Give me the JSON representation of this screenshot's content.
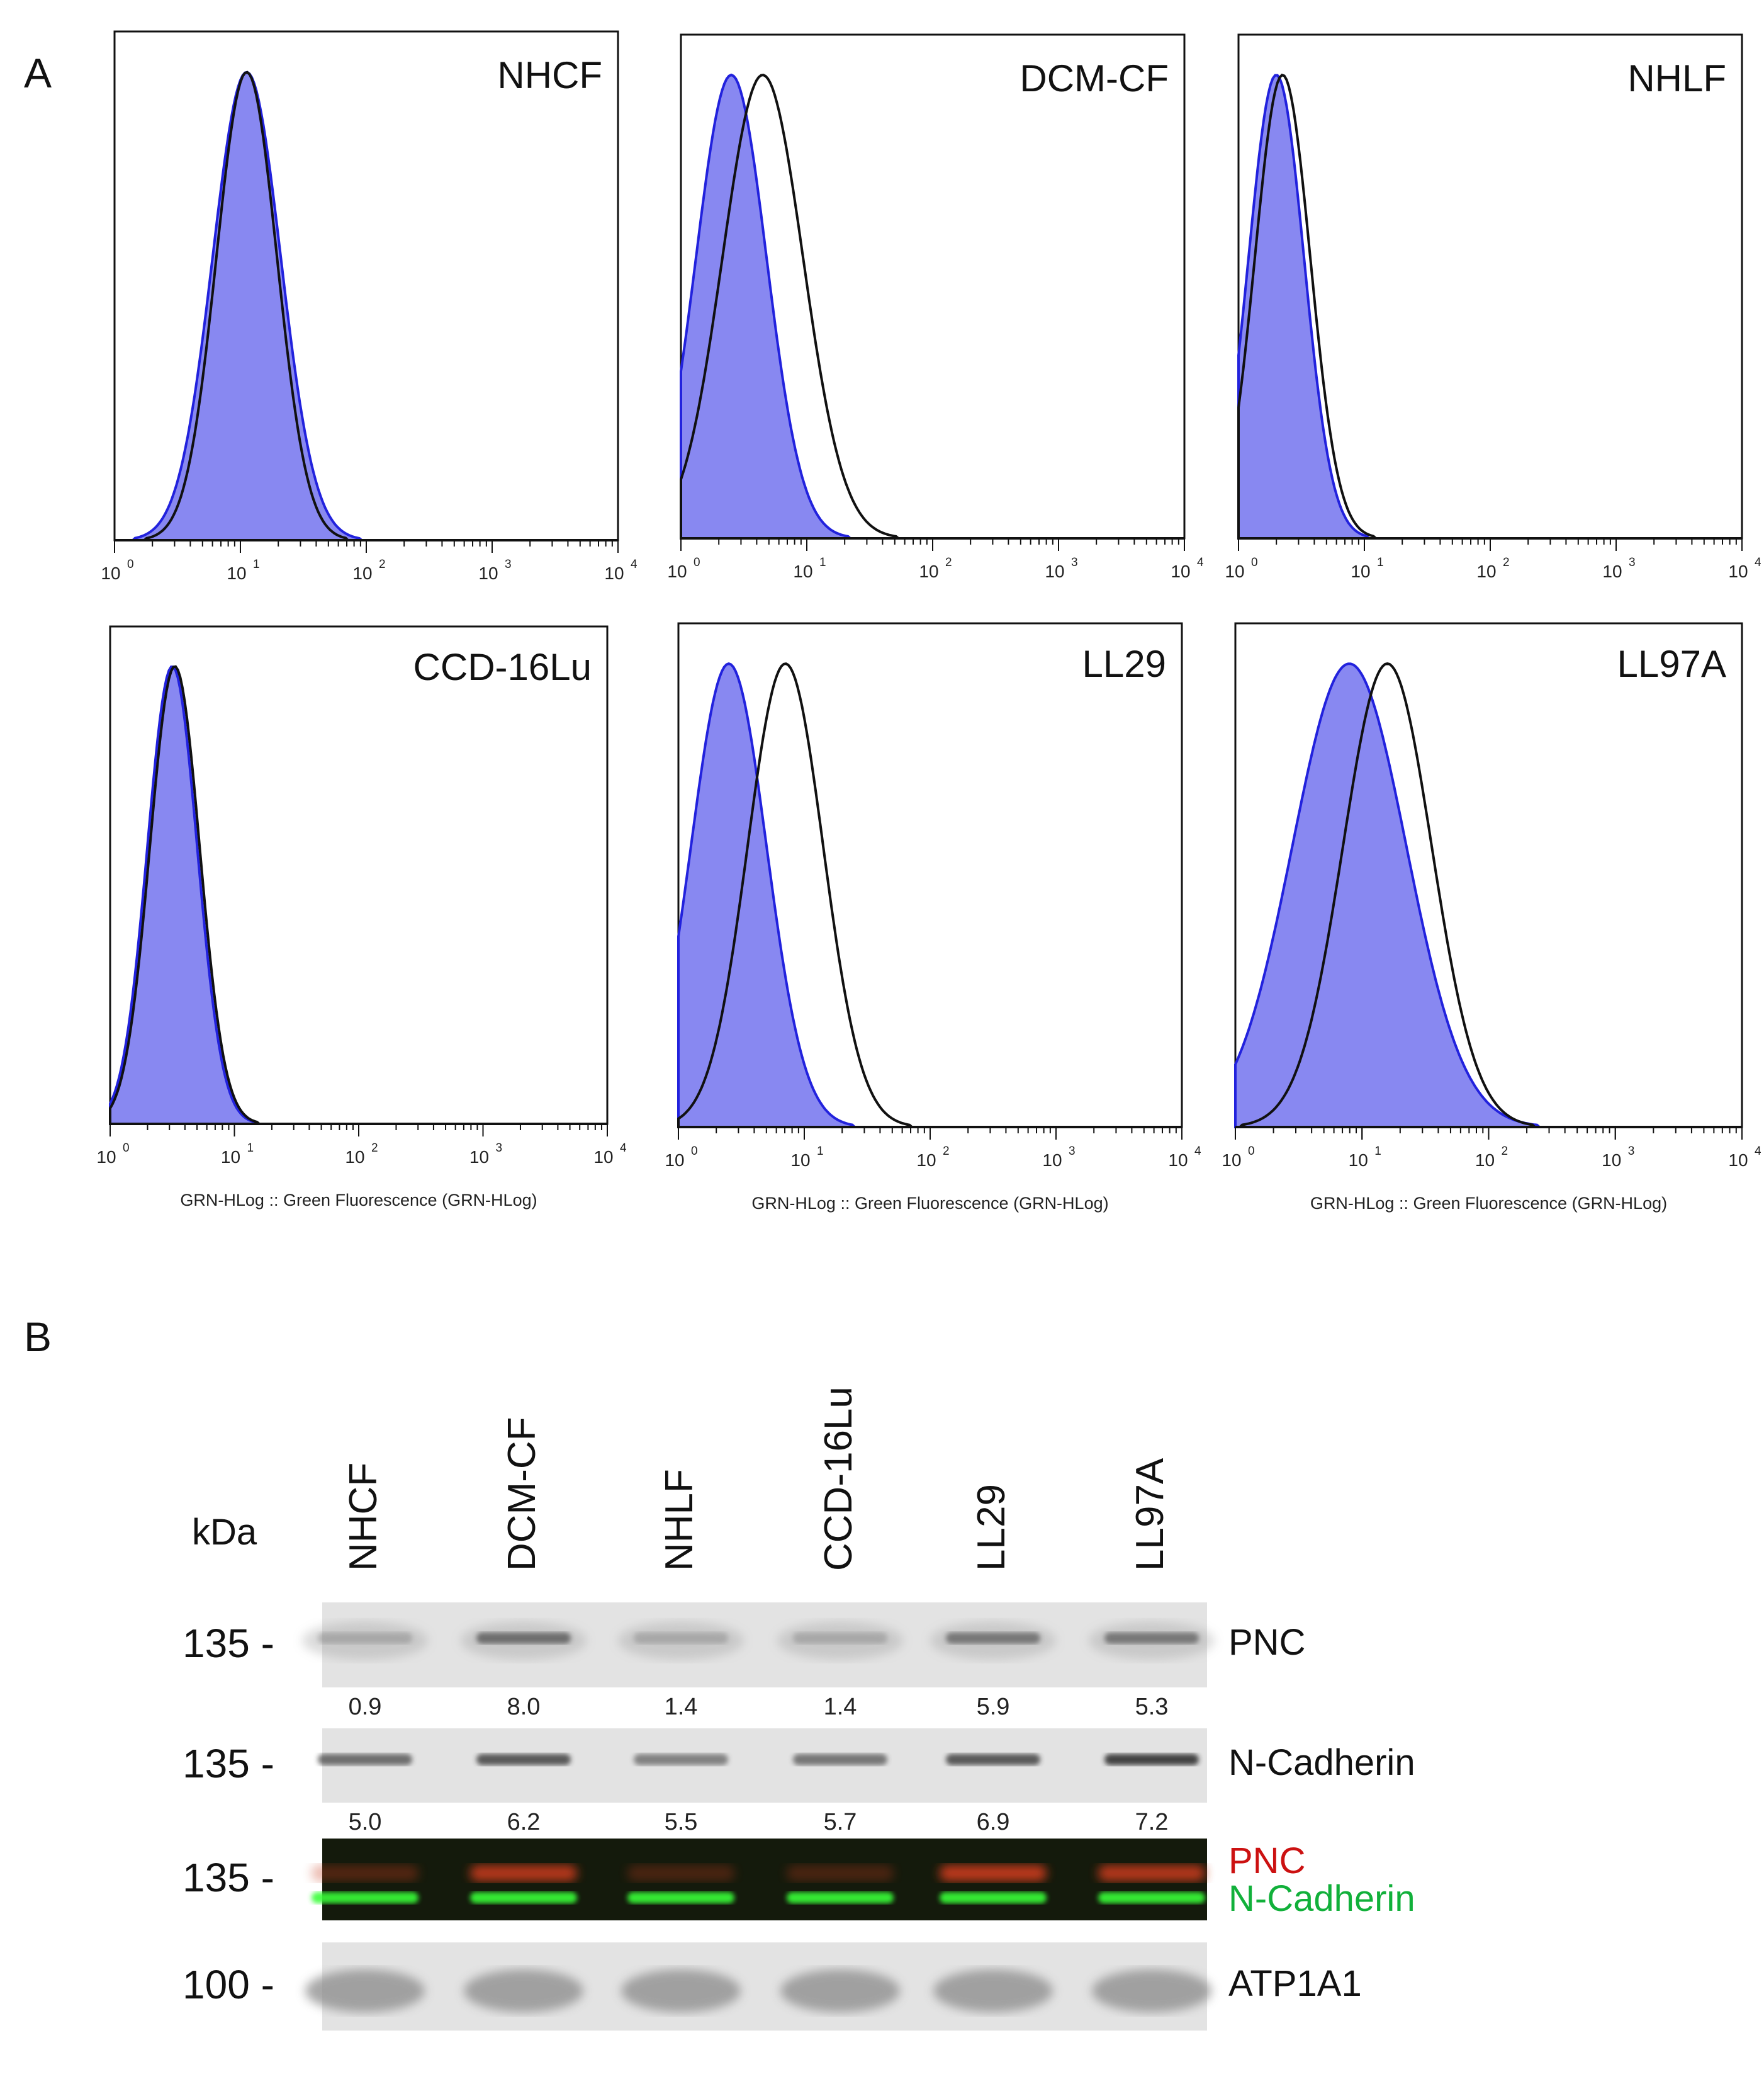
{
  "panel_a_label": "A",
  "panel_b_label": "B",
  "chart_data": [
    {
      "type": "histogram",
      "title": "NHCF",
      "xscale": "log",
      "xlim": [
        1,
        10000
      ],
      "xticks": [
        "10",
        "10",
        "10",
        "10",
        "10"
      ],
      "xtick_exponents": [
        "0",
        "1",
        "2",
        "3",
        "4"
      ],
      "xlabel": "",
      "series": [
        {
          "name": "filled-blue",
          "peak_log10": 1.05,
          "width": 0.27
        },
        {
          "name": "black-outline",
          "peak_log10": 1.05,
          "width": 0.24
        }
      ]
    },
    {
      "type": "histogram",
      "title": "DCM-CF",
      "xscale": "log",
      "xlim": [
        1,
        10000
      ],
      "xticks": [
        "10",
        "10",
        "10",
        "10",
        "10"
      ],
      "xtick_exponents": [
        "0",
        "1",
        "2",
        "3",
        "4"
      ],
      "xlabel": "",
      "series": [
        {
          "name": "filled-blue",
          "peak_log10": 0.4,
          "width": 0.28
        },
        {
          "name": "black-outline",
          "peak_log10": 0.65,
          "width": 0.32
        }
      ]
    },
    {
      "type": "histogram",
      "title": "NHLF",
      "xscale": "log",
      "xlim": [
        1,
        10000
      ],
      "xticks": [
        "10",
        "10",
        "10",
        "10",
        "10"
      ],
      "xtick_exponents": [
        "0",
        "1",
        "2",
        "3",
        "4"
      ],
      "xlabel": "",
      "series": [
        {
          "name": "filled-blue",
          "peak_log10": 0.3,
          "width": 0.22
        },
        {
          "name": "black-outline",
          "peak_log10": 0.35,
          "width": 0.22
        }
      ]
    },
    {
      "type": "histogram",
      "title": "CCD-16Lu",
      "xscale": "log",
      "xlim": [
        1,
        10000
      ],
      "xticks": [
        "10",
        "10",
        "10",
        "10",
        "10"
      ],
      "xtick_exponents": [
        "0",
        "1",
        "2",
        "3",
        "4"
      ],
      "xlabel": "GRN-HLog :: Green Fluorescence (GRN-HLog)",
      "series": [
        {
          "name": "filled-blue",
          "peak_log10": 0.5,
          "width": 0.2
        },
        {
          "name": "black-outline",
          "peak_log10": 0.52,
          "width": 0.2
        }
      ]
    },
    {
      "type": "histogram",
      "title": "LL29",
      "xscale": "log",
      "xlim": [
        1,
        10000
      ],
      "xticks": [
        "10",
        "10",
        "10",
        "10",
        "10"
      ],
      "xtick_exponents": [
        "0",
        "1",
        "2",
        "3",
        "4"
      ],
      "xlabel": "GRN-HLog :: Green Fluorescence (GRN-HLog)",
      "series": [
        {
          "name": "filled-blue",
          "peak_log10": 0.4,
          "width": 0.3
        },
        {
          "name": "black-outline",
          "peak_log10": 0.85,
          "width": 0.3
        }
      ]
    },
    {
      "type": "histogram",
      "title": "LL97A",
      "xscale": "log",
      "xlim": [
        1,
        10000
      ],
      "xticks": [
        "10",
        "10",
        "10",
        "10",
        "10"
      ],
      "xtick_exponents": [
        "0",
        "1",
        "2",
        "3",
        "4"
      ],
      "xlabel": "GRN-HLog :: Green Fluorescence (GRN-HLog)",
      "series": [
        {
          "name": "filled-blue",
          "peak_log10": 0.9,
          "width": 0.45
        },
        {
          "name": "black-outline",
          "peak_log10": 1.2,
          "width": 0.35
        }
      ]
    }
  ],
  "blot": {
    "kda_label": "kDa",
    "lanes": [
      "NHCF",
      "DCM-CF",
      "NHLF",
      "CCD-16Lu",
      "LL29",
      "LL97A"
    ],
    "rows": [
      {
        "marker": "135 -",
        "name": "PNC",
        "name_color": "#111111",
        "intensities": [
          0.12,
          0.55,
          0.12,
          0.12,
          0.5,
          0.5
        ],
        "quant": [
          "0.9",
          "8.0",
          "1.4",
          "1.4",
          "5.9",
          "5.3"
        ]
      },
      {
        "marker": "135 -",
        "name": "N-Cadherin",
        "name_color": "#111111",
        "intensities": [
          0.6,
          0.7,
          0.5,
          0.55,
          0.7,
          0.8
        ],
        "quant": [
          "5.0",
          "6.2",
          "5.5",
          "5.7",
          "6.9",
          "7.2"
        ]
      },
      {
        "marker": "135 -",
        "name": "PNC",
        "name2": "N-Cadherin",
        "name_color": "#cc1111",
        "name2_color": "#11b03a"
      },
      {
        "marker": "100 -",
        "name": "ATP1A1",
        "name_color": "#111111"
      }
    ]
  }
}
